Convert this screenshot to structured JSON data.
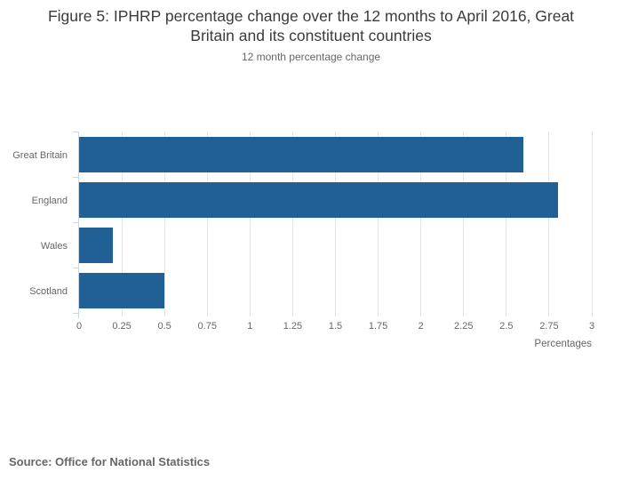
{
  "header": {
    "title": "Figure 5: IPHRP percentage change over the 12 months to April 2016, Great Britain and its constituent countries",
    "subtitle": "12 month percentage change"
  },
  "chart_data": {
    "type": "bar",
    "orientation": "horizontal",
    "title": "Figure 5: IPHRP percentage change over the 12 months to April 2016, Great Britain and its constituent countries",
    "subtitle": "12 month percentage change",
    "categories": [
      "Great Britain",
      "England",
      "Wales",
      "Scotland"
    ],
    "values": [
      2.6,
      2.8,
      0.2,
      0.5
    ],
    "xlabel": "Percentages",
    "ylabel": "",
    "xlim": [
      0,
      3
    ],
    "xticks": [
      0,
      0.25,
      0.5,
      0.75,
      1,
      1.25,
      1.5,
      1.75,
      2,
      2.25,
      2.5,
      2.75,
      3
    ],
    "grid": true,
    "legend": "none",
    "colors": {
      "bar": "#206095",
      "gridline": "#e6e6e6",
      "category_axis_line": "#ccd6eb",
      "value_axis_tick": "#e6e6e6",
      "labels": "#666666",
      "title_text": "#3b3b3f"
    }
  },
  "source": {
    "text": "Source: Office for National Statistics"
  }
}
